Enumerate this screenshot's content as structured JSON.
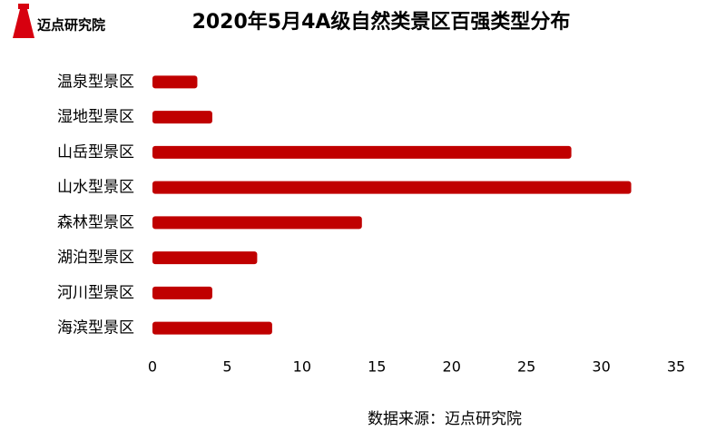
{
  "logo": "迈点研究院",
  "chart_data": {
    "type": "bar",
    "orientation": "horizontal",
    "title": "2020年5月4A级自然类景区百强类型分布",
    "source": "数据来源：迈点研究院",
    "categories": [
      "温泉型景区",
      "湿地型景区",
      "山岳型景区",
      "山水型景区",
      "森林型景区",
      "湖泊型景区",
      "河川型景区",
      "海滨型景区"
    ],
    "values": [
      3,
      4,
      28,
      32,
      14,
      7,
      4,
      8
    ],
    "color": "#c00000",
    "xlim": [
      0,
      35
    ],
    "xticks": [
      0,
      5,
      10,
      15,
      20,
      25,
      30,
      35
    ],
    "grid": false
  }
}
